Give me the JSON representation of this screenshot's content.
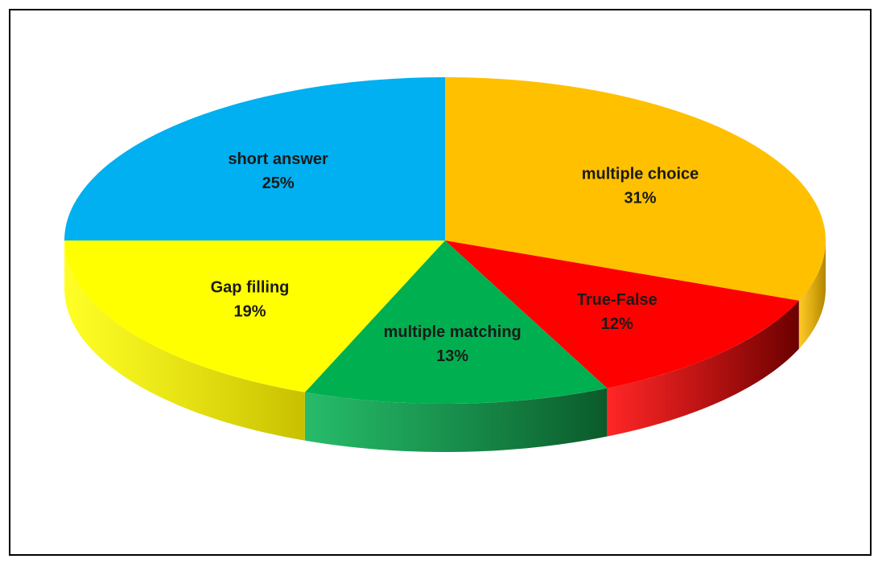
{
  "chart_data": {
    "type": "pie",
    "style": "3d",
    "title": "",
    "slices": [
      {
        "label": "multiple choice",
        "value": 31,
        "display": "31%",
        "color": "#FFC000",
        "side_color": "#B38600"
      },
      {
        "label": "True-False",
        "value": 12,
        "display": "12%",
        "color": "#FF0000",
        "side_color": "#6B0000"
      },
      {
        "label": "multiple matching",
        "value": 13,
        "display": "13%",
        "color": "#00B050",
        "side_color": "#0B5A2A"
      },
      {
        "label": "Gap filling",
        "value": 19,
        "display": "19%",
        "color": "#FFFF00",
        "side_color": "#C8C000"
      },
      {
        "label": "short answer",
        "value": 25,
        "display": "25%",
        "color": "#00B0F0",
        "side_color": "#0078A8"
      }
    ],
    "legend": "none"
  }
}
